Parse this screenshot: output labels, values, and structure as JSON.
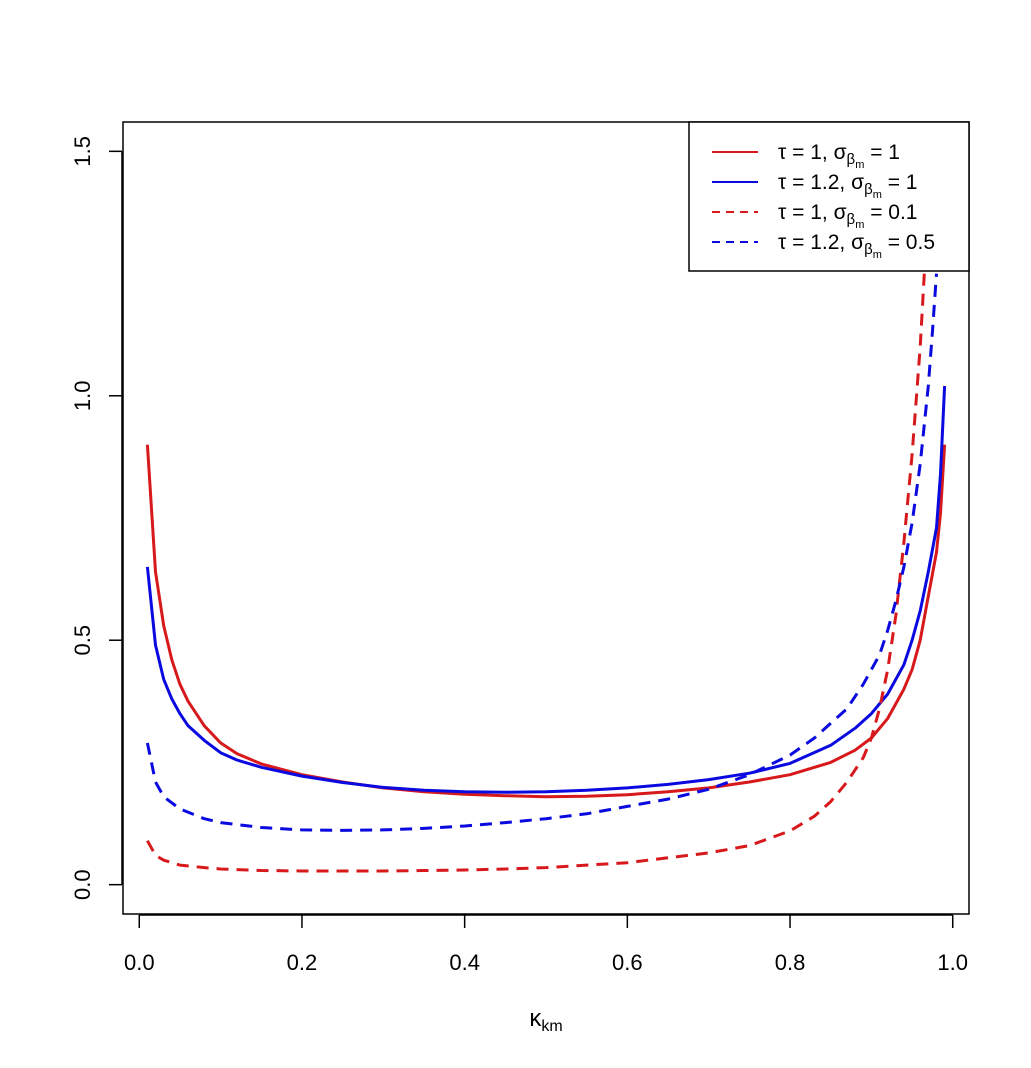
{
  "chart_data": {
    "type": "line",
    "title": "",
    "xlabel": {
      "symbol": "κ",
      "subscript": "km"
    },
    "ylabel": "",
    "xlim": [
      -0.02,
      1.02
    ],
    "ylim": [
      -0.06,
      1.56
    ],
    "x_ticks": [
      0.0,
      0.2,
      0.4,
      0.6,
      0.8,
      1.0
    ],
    "x_tick_labels": [
      "0.0",
      "0.2",
      "0.4",
      "0.6",
      "0.8",
      "1.0"
    ],
    "y_ticks": [
      0.0,
      0.5,
      1.0,
      1.5
    ],
    "y_tick_labels": [
      "0.0",
      "0.5",
      "1.0",
      "1.5"
    ],
    "grid": false,
    "legend_position": "top-right",
    "series": [
      {
        "legend": {
          "tau": "τ = 1, ",
          "sigma": "σ",
          "sub": "β",
          "subsub": "m",
          "value": " = 1"
        },
        "color": "#d7191c",
        "dash": "solid",
        "x": [
          0.01,
          0.02,
          0.03,
          0.04,
          0.05,
          0.06,
          0.08,
          0.1,
          0.12,
          0.15,
          0.2,
          0.25,
          0.3,
          0.35,
          0.4,
          0.45,
          0.5,
          0.55,
          0.6,
          0.65,
          0.7,
          0.75,
          0.8,
          0.85,
          0.88,
          0.9,
          0.92,
          0.94,
          0.95,
          0.96,
          0.97,
          0.98,
          0.985,
          0.99
        ],
        "y": [
          0.9,
          0.64,
          0.53,
          0.46,
          0.41,
          0.375,
          0.325,
          0.29,
          0.268,
          0.247,
          0.225,
          0.21,
          0.198,
          0.19,
          0.185,
          0.182,
          0.18,
          0.181,
          0.184,
          0.19,
          0.198,
          0.21,
          0.225,
          0.25,
          0.275,
          0.3,
          0.34,
          0.4,
          0.44,
          0.5,
          0.59,
          0.68,
          0.76,
          0.9
        ]
      },
      {
        "legend": {
          "tau": "τ = 1.2, ",
          "sigma": "σ",
          "sub": "β",
          "subsub": "m",
          "value": " = 1"
        },
        "color": "#0a0ae0",
        "dash": "solid",
        "x": [
          0.01,
          0.02,
          0.03,
          0.04,
          0.05,
          0.06,
          0.08,
          0.1,
          0.12,
          0.15,
          0.2,
          0.25,
          0.3,
          0.35,
          0.4,
          0.45,
          0.5,
          0.55,
          0.6,
          0.65,
          0.7,
          0.75,
          0.8,
          0.85,
          0.88,
          0.9,
          0.92,
          0.94,
          0.95,
          0.96,
          0.97,
          0.98,
          0.985,
          0.99
        ],
        "y": [
          0.65,
          0.49,
          0.42,
          0.38,
          0.35,
          0.325,
          0.295,
          0.27,
          0.255,
          0.24,
          0.222,
          0.209,
          0.199,
          0.193,
          0.19,
          0.189,
          0.19,
          0.193,
          0.198,
          0.205,
          0.215,
          0.228,
          0.248,
          0.285,
          0.32,
          0.35,
          0.39,
          0.45,
          0.5,
          0.56,
          0.64,
          0.73,
          0.84,
          1.02
        ]
      },
      {
        "legend": {
          "tau": "τ = 1, ",
          "sigma": "σ",
          "sub": "β",
          "subsub": "m",
          "value": " = 0.1"
        },
        "color": "#d7191c",
        "dash": "dashed",
        "x": [
          0.01,
          0.02,
          0.03,
          0.05,
          0.08,
          0.1,
          0.15,
          0.2,
          0.25,
          0.3,
          0.35,
          0.4,
          0.45,
          0.5,
          0.55,
          0.6,
          0.65,
          0.7,
          0.75,
          0.8,
          0.83,
          0.85,
          0.87,
          0.89,
          0.9,
          0.91,
          0.92,
          0.93,
          0.94,
          0.95,
          0.96,
          0.965,
          0.97
        ],
        "y": [
          0.09,
          0.06,
          0.05,
          0.04,
          0.035,
          0.032,
          0.029,
          0.028,
          0.028,
          0.028,
          0.029,
          0.03,
          0.032,
          0.035,
          0.04,
          0.045,
          0.055,
          0.065,
          0.08,
          0.11,
          0.14,
          0.17,
          0.21,
          0.26,
          0.3,
          0.36,
          0.44,
          0.55,
          0.7,
          0.88,
          1.1,
          1.25,
          1.36
        ]
      },
      {
        "legend": {
          "tau": "τ = 1.2, ",
          "sigma": "σ",
          "sub": "β",
          "subsub": "m",
          "value": " = 0.5"
        },
        "color": "#0a0ae0",
        "dash": "dashed",
        "x": [
          0.01,
          0.02,
          0.03,
          0.05,
          0.08,
          0.1,
          0.15,
          0.2,
          0.25,
          0.3,
          0.35,
          0.4,
          0.45,
          0.5,
          0.55,
          0.6,
          0.65,
          0.7,
          0.75,
          0.8,
          0.83,
          0.85,
          0.87,
          0.89,
          0.9,
          0.91,
          0.92,
          0.93,
          0.94,
          0.95,
          0.96,
          0.97,
          0.975,
          0.98
        ],
        "y": [
          0.29,
          0.21,
          0.18,
          0.155,
          0.135,
          0.127,
          0.117,
          0.112,
          0.111,
          0.112,
          0.115,
          0.12,
          0.127,
          0.135,
          0.145,
          0.16,
          0.175,
          0.195,
          0.225,
          0.265,
          0.3,
          0.33,
          0.36,
          0.41,
          0.44,
          0.47,
          0.52,
          0.58,
          0.65,
          0.74,
          0.86,
          1.02,
          1.13,
          1.25
        ]
      }
    ]
  }
}
